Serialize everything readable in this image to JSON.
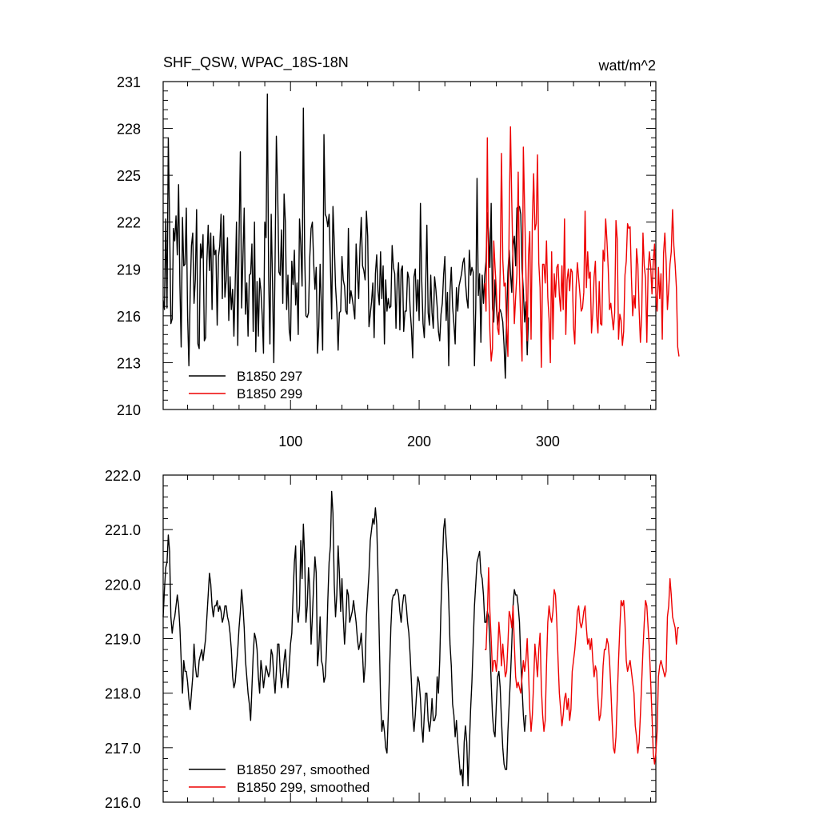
{
  "header": {
    "title": "SHF_QSW, WPAC_18S-18N",
    "units": "watt/m^2"
  },
  "colors": {
    "series_297": "#000000",
    "series_299": "#ee0000"
  },
  "chart_data": [
    {
      "type": "line",
      "title": "SHF_QSW, WPAC_18S-18N",
      "units": "watt/m^2",
      "xlim": [
        1,
        384
      ],
      "ylim": [
        210,
        231
      ],
      "x_ticks": [
        100,
        200,
        300
      ],
      "y_ticks": [
        210,
        213,
        216,
        219,
        222,
        225,
        228,
        231
      ],
      "y_tick_labels": [
        "210",
        "213",
        "216",
        "219",
        "222",
        "225",
        "228",
        "231"
      ],
      "legend_position": "bottom-left",
      "grid": false,
      "series": [
        {
          "name": "B1850 297",
          "color": "#000000",
          "x_start": 1,
          "values": [
            217,
            216.4,
            222.2,
            216.5,
            227.4,
            222,
            215.5,
            215.8,
            221.6,
            220.8,
            222.4,
            219.9,
            224.4,
            218,
            214,
            222.3,
            219.2,
            219.3,
            222.9,
            216,
            212.8,
            217.4,
            220.5,
            221.3,
            216.8,
            218.3,
            222.8,
            214.2,
            213.9,
            220.6,
            219.7,
            221.2,
            214.4,
            214.6,
            219.5,
            221.8,
            218.9,
            221.3,
            216.4,
            221.1,
            219.9,
            220.2,
            215.4,
            219.8,
            220.5,
            222.5,
            217.1,
            222.4,
            217.2,
            218.3,
            221,
            215.7,
            218.5,
            216.4,
            217.7,
            214.7,
            218,
            222,
            214.1,
            221,
            226.5,
            216.5,
            219.7,
            222.9,
            216.1,
            218.1,
            214.7,
            218.6,
            218.7,
            220.6,
            215,
            222,
            213.7,
            218.2,
            214.7,
            218.4,
            217.6,
            216,
            213.6,
            222,
            221,
            230.2,
            218.5,
            214.2,
            222.5,
            218.2,
            213,
            219.5,
            227.5,
            224,
            218.8,
            218.6,
            221.5,
            216.8,
            223.8,
            222,
            216.4,
            218.6,
            215.1,
            214.4,
            219.5,
            218,
            220.2,
            216.7,
            218.1,
            214.8,
            222.2,
            220.5,
            217.9,
            229.3,
            220,
            216,
            215.9,
            216.2,
            219.8,
            221.6,
            222,
            219.4,
            217.7,
            219.1,
            213.6,
            215.3,
            219.3,
            216.6,
            213.8,
            227.6,
            222.5,
            222.3,
            221.7,
            222.5,
            219.3,
            215.8,
            223,
            220.7,
            217.9,
            216.5,
            213.8,
            216.2,
            216.3,
            219.8,
            218.3,
            217.9,
            216.3,
            216.1,
            221.6,
            216.8,
            217.6,
            217.1,
            216.5,
            215.8,
            220.6,
            218.8,
            217.1,
            220.4,
            222.3,
            219.2,
            218.9,
            218.3,
            222.7,
            221.1,
            215.3,
            216.1,
            216.9,
            218.1,
            214.6,
            218.7,
            219.9,
            217.6,
            216.7,
            220.1,
            217.1,
            219.2,
            214.2,
            218.3,
            216.3,
            217.1,
            216.5,
            216.6,
            220.5,
            219.1,
            218.7,
            215.2,
            218.4,
            219.4,
            215.1,
            218.9,
            219.2,
            215,
            216.3,
            216.3,
            218.8,
            218.4,
            216.4,
            215.2,
            213.3,
            218.5,
            219,
            216.3,
            218.3,
            215.7,
            223.2,
            218.3,
            215.5,
            214.6,
            217.5,
            221.8,
            216.2,
            215.4,
            218.6,
            216.2,
            215.2,
            218.5,
            217.7,
            216.6,
            215,
            214.4,
            216.1,
            216.8,
            218.6,
            219.8,
            215.7,
            217.5,
            212.8,
            217.6,
            219.1,
            216.6,
            215.5,
            214.2,
            217.8,
            216.3,
            217.9,
            218.3,
            218.7,
            219.4,
            219.7,
            218.2,
            217.1,
            216.5,
            220.2,
            218.6,
            219.1,
            218.8,
            212.8,
            216.5,
            224.8,
            217.3,
            218.7,
            214.3,
            218.6,
            216.8,
            218.6,
            219.5,
            222.6,
            221.3,
            219.1,
            223.2,
            216.5,
            215.6,
            218.3,
            216.6,
            215.4,
            216.2,
            216.4,
            216.1,
            215.6,
            214.1,
            212,
            215.8,
            218.8,
            220.2,
            218.7,
            217.5,
            220.5,
            221.1,
            219.2,
            222.9,
            223,
            223,
            222.5,
            219,
            217.6,
            215.6,
            216.9,
            213.5,
            215.9
          ],
          "note_x_end": 303
        },
        {
          "name": "B1850 299",
          "color": "#ee0000",
          "x_start": 251,
          "values": [
            218.1,
            216.3,
            227.4,
            218.2,
            215,
            213.1,
            213.9,
            220.8,
            219.1,
            217.7,
            215.2,
            214.8,
            219,
            226.4,
            219.6,
            217.9,
            218.1,
            215.2,
            213.4,
            222.1,
            228.1,
            223.3,
            219.3,
            215.5,
            217.2,
            218.7,
            225.2,
            218.5,
            215.4,
            213.1,
            226.8,
            222.9,
            218.9,
            214.4,
            219.9,
            221.4,
            214.5,
            222.1,
            225.1,
            221.5,
            221.9,
            226.3,
            219.4,
            217.8,
            212.7,
            219.3,
            219.3,
            218.1,
            220.8,
            217.2,
            215.8,
            213,
            220.1,
            214.5,
            218.7,
            217.2,
            219.1,
            219.3,
            217.3,
            216.3,
            219.2,
            216.4,
            222.2,
            214.8,
            218.3,
            219,
            217.6,
            219,
            218.8,
            215.3,
            214.2,
            217.8,
            219.4,
            218.4,
            217.4,
            216.3,
            216.5,
            217.5,
            222.7,
            217.8,
            220.1,
            218.4,
            218.8,
            214.9,
            216.2,
            218.5,
            219.5,
            216,
            214.9,
            218.2,
            215.5,
            215.4,
            220.2,
            219.5,
            222.2,
            220.8,
            219,
            216.4,
            216.8,
            215.9,
            215.1,
            216.2,
            222.1,
            220.9,
            214.5,
            216.1,
            215.7,
            214.1,
            215,
            218.6,
            219.5,
            221.9,
            221.6,
            221.7,
            218.5,
            216,
            217.3,
            216.5,
            220.3,
            219.3,
            216.4,
            214.3,
            216,
            221.3,
            219.2,
            218.4,
            214.3,
            218.9,
            220.1,
            219.1,
            217.4,
            219.5,
            220.6,
            217.5,
            216.3,
            219.1,
            217.1,
            218.7,
            214.5,
            220,
            221.3,
            219.5,
            216.4,
            217.7,
            219.3,
            220.1,
            222.8,
            220.5,
            219.3,
            217.8,
            214,
            213.4
          ],
          "note_x_end": 384
        }
      ]
    },
    {
      "type": "line",
      "xlim": [
        1,
        384
      ],
      "ylim": [
        216,
        222
      ],
      "x_ticks": [
        100,
        200,
        300
      ],
      "y_ticks": [
        216,
        217,
        218,
        219,
        220,
        221,
        222
      ],
      "y_tick_labels": [
        "216.0",
        "217.0",
        "218.0",
        "219.0",
        "220.0",
        "221.0",
        "222.0"
      ],
      "legend_position": "bottom-left",
      "grid": false,
      "series": [
        {
          "name": "B1850 297, smoothed",
          "color": "#000000",
          "x_start": 1,
          "values": [
            219.4,
            219.9,
            220.3,
            220.4,
            220.9,
            220.6,
            219.4,
            219.1,
            219.3,
            219.4,
            219.6,
            219.8,
            219.6,
            219.2,
            218.6,
            218,
            218.6,
            218.4,
            218.4,
            218.2,
            217.9,
            217.7,
            218,
            218.3,
            218.9,
            218.5,
            218.3,
            218.3,
            218.6,
            218.7,
            218.8,
            218.6,
            218.8,
            219,
            219.4,
            219.8,
            220.2,
            220,
            219.6,
            219.4,
            219.6,
            219.6,
            219.7,
            219.5,
            219.6,
            219.5,
            219.3,
            219.4,
            219.6,
            219.6,
            219.4,
            219.3,
            219.1,
            218.8,
            218.3,
            218.1,
            218.2,
            218.5,
            218.8,
            219.2,
            219.5,
            219.9,
            219.6,
            219.2,
            218.6,
            218.3,
            218,
            217.8,
            217.5,
            218.1,
            218.7,
            219.1,
            219,
            218.8,
            218.3,
            218,
            218.6,
            218.4,
            218.1,
            218.3,
            218.5,
            218.4,
            218.3,
            218.4,
            218.8,
            218.7,
            218.3,
            218,
            218.4,
            218.9,
            218.9,
            218.4,
            218.1,
            218.3,
            218.6,
            218.8,
            218.4,
            218.1,
            218.5,
            218.9,
            219.1,
            219.8,
            220.4,
            220.7,
            219.5,
            219.3,
            219.6,
            220.8,
            220.1,
            221.1,
            220.5,
            219.3,
            219.6,
            220.3,
            219.9,
            218.9,
            219.4,
            220,
            220.5,
            220.2,
            218.5,
            218.8,
            219.4,
            218.6,
            218.5,
            218.2,
            218.3,
            218.8,
            219.7,
            220.4,
            220.7,
            221.7,
            221.3,
            220,
            219.4,
            219.8,
            220.7,
            220.2,
            219.5,
            220.1,
            219.4,
            218.9,
            219.3,
            219.9,
            219.8,
            219.3,
            219.4,
            219.5,
            219.7,
            219.5,
            219.3,
            219,
            218.8,
            218.9,
            219.1,
            218.7,
            218.2,
            218.5,
            219.4,
            219.8,
            220.2,
            220.8,
            221,
            221.2,
            221.1,
            221.4,
            221.1,
            220.2,
            219,
            217.9,
            217.3,
            217.5,
            217.3,
            217,
            216.9,
            217.6,
            218.4,
            219.2,
            219.7,
            219.8,
            219.8,
            219.9,
            219.9,
            219.8,
            219.5,
            219.3,
            219.6,
            219.8,
            219.8,
            219.6,
            219.3,
            219.1,
            218.7,
            218.2,
            217.6,
            217.3,
            217.6,
            218,
            218.3,
            218.2,
            217.9,
            217.4,
            217.1,
            217.6,
            218,
            218,
            217.5,
            217.3,
            217.5,
            217.9,
            217.5,
            217.5,
            217.6,
            218.3,
            218,
            218.6,
            219.6,
            220.3,
            221,
            221.2,
            220.8,
            220.4,
            219.7,
            218.9,
            218.5,
            217.8,
            217.6,
            217.2,
            217.5,
            217.1,
            216.8,
            216.5,
            216.6,
            216.3,
            217.1,
            217.4,
            217.1,
            216.3,
            217,
            217.7,
            218.2,
            218.9,
            219.6,
            220,
            220.4,
            220.5,
            220.6,
            220.2,
            220.1,
            219.8,
            219.3,
            219.3,
            219.5,
            219.4,
            218.9,
            218.2,
            217.6,
            217.3,
            217.2,
            217.8,
            218.3,
            218.4,
            218.1,
            217.5,
            217,
            216.7,
            216.6,
            216.6,
            217.3,
            217.8,
            218.3,
            218.9,
            219.6,
            219.9,
            219.8,
            219.8,
            219.6,
            219.3,
            218.6,
            218.1,
            217.6,
            217.3,
            217.6
          ]
        },
        {
          "name": "B1850 299, smoothed",
          "color": "#ee0000",
          "x_start": 251,
          "values": [
            218.8,
            218.8,
            219.4,
            220.3,
            219.5,
            219,
            218.4,
            218.6,
            218.6,
            218.4,
            218.7,
            219.3,
            219,
            218.5,
            218.9,
            218.6,
            218.3,
            218.4,
            218.9,
            219.5,
            219.4,
            219.2,
            219.6,
            218.9,
            218.3,
            218.1,
            218.2,
            218.1,
            218,
            218.3,
            218.6,
            218.4,
            218.6,
            219,
            218.4,
            217.7,
            217.3,
            217.6,
            218.2,
            218.9,
            218.6,
            218.3,
            218.8,
            219.1,
            218.1,
            217.6,
            217.3,
            217.5,
            218.5,
            219.3,
            219.6,
            219.4,
            219.3,
            219.5,
            219.9,
            219.8,
            219.3,
            218.6,
            218,
            217.7,
            217.4,
            217.6,
            217.9,
            218,
            217.7,
            217.9,
            217.5,
            217.7,
            218.4,
            218.6,
            218.8,
            219.1,
            219.5,
            219.6,
            219.3,
            219.2,
            219.3,
            219.5,
            219.6,
            219.2,
            218.9,
            219,
            218.8,
            219,
            218.6,
            218.3,
            218.5,
            218.4,
            217.9,
            217.5,
            217.6,
            217.9,
            218.5,
            218.8,
            218.8,
            219,
            218.9,
            218.6,
            218.1,
            217.5,
            217,
            216.9,
            217.2,
            217.9,
            218.6,
            219.2,
            219.7,
            219.6,
            219.7,
            219.3,
            218.6,
            218.4,
            218.5,
            218.6,
            218.4,
            218.2,
            218,
            217.4,
            217.2,
            216.9,
            217.1,
            217.6,
            218.2,
            218.8,
            219.3,
            219.7,
            219.6,
            219.2,
            218.8,
            218.2,
            217.6,
            216.9,
            216.7,
            216.9,
            217.3,
            218.3,
            218.5,
            218.6,
            218.5,
            218.4,
            218.3,
            218.4,
            219.4,
            219.6,
            220.1,
            219.8,
            219.4,
            219.3,
            219.2,
            218.9,
            219.2,
            219.2
          ]
        }
      ]
    }
  ]
}
